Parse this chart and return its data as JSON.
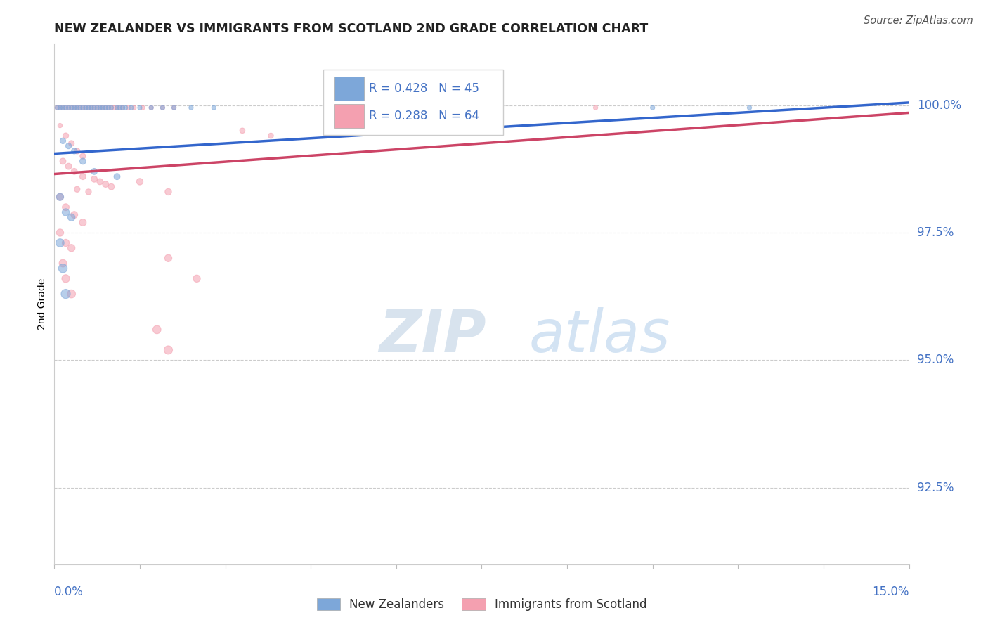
{
  "title": "NEW ZEALANDER VS IMMIGRANTS FROM SCOTLAND 2ND GRADE CORRELATION CHART",
  "source": "Source: ZipAtlas.com",
  "ylabel": "2nd Grade",
  "ylabel_ticks": [
    "92.5%",
    "95.0%",
    "97.5%",
    "100.0%"
  ],
  "ylabel_values": [
    92.5,
    95.0,
    97.5,
    100.0
  ],
  "xlim": [
    0.0,
    15.0
  ],
  "ylim": [
    91.0,
    101.2
  ],
  "legend_blue_r": "R = 0.428",
  "legend_blue_n": "N = 45",
  "legend_pink_r": "R = 0.288",
  "legend_pink_n": "N = 64",
  "legend_label_blue": "New Zealanders",
  "legend_label_pink": "Immigrants from Scotland",
  "blue_color": "#7da7d9",
  "pink_color": "#f4a0b0",
  "blue_line_color": "#3366cc",
  "pink_line_color": "#cc4466",
  "blue_line_x": [
    0.0,
    15.0
  ],
  "blue_line_y": [
    99.05,
    100.05
  ],
  "pink_line_x": [
    0.0,
    15.0
  ],
  "pink_line_y": [
    98.65,
    99.85
  ],
  "blue_dots": [
    [
      0.05,
      99.95
    ],
    [
      0.1,
      99.95
    ],
    [
      0.15,
      99.95
    ],
    [
      0.2,
      99.95
    ],
    [
      0.25,
      99.95
    ],
    [
      0.3,
      99.95
    ],
    [
      0.35,
      99.95
    ],
    [
      0.4,
      99.95
    ],
    [
      0.45,
      99.95
    ],
    [
      0.5,
      99.95
    ],
    [
      0.55,
      99.95
    ],
    [
      0.6,
      99.95
    ],
    [
      0.65,
      99.95
    ],
    [
      0.7,
      99.95
    ],
    [
      0.75,
      99.95
    ],
    [
      0.8,
      99.95
    ],
    [
      0.85,
      99.95
    ],
    [
      0.9,
      99.95
    ],
    [
      0.95,
      99.95
    ],
    [
      1.0,
      99.95
    ],
    [
      1.1,
      99.95
    ],
    [
      1.15,
      99.95
    ],
    [
      1.2,
      99.95
    ],
    [
      1.25,
      99.95
    ],
    [
      1.35,
      99.95
    ],
    [
      1.5,
      99.95
    ],
    [
      1.7,
      99.95
    ],
    [
      1.9,
      99.95
    ],
    [
      2.1,
      99.95
    ],
    [
      2.4,
      99.95
    ],
    [
      2.8,
      99.95
    ],
    [
      0.15,
      99.3
    ],
    [
      0.25,
      99.2
    ],
    [
      0.35,
      99.1
    ],
    [
      0.5,
      98.9
    ],
    [
      0.7,
      98.7
    ],
    [
      1.1,
      98.6
    ],
    [
      0.1,
      98.2
    ],
    [
      0.2,
      97.9
    ],
    [
      0.3,
      97.8
    ],
    [
      0.1,
      97.3
    ],
    [
      0.15,
      96.8
    ],
    [
      0.2,
      96.3
    ],
    [
      10.5,
      99.95
    ],
    [
      12.2,
      99.95
    ]
  ],
  "pink_dots": [
    [
      0.05,
      99.95
    ],
    [
      0.1,
      99.95
    ],
    [
      0.15,
      99.95
    ],
    [
      0.2,
      99.95
    ],
    [
      0.25,
      99.95
    ],
    [
      0.3,
      99.95
    ],
    [
      0.35,
      99.95
    ],
    [
      0.4,
      99.95
    ],
    [
      0.45,
      99.95
    ],
    [
      0.5,
      99.95
    ],
    [
      0.55,
      99.95
    ],
    [
      0.6,
      99.95
    ],
    [
      0.65,
      99.95
    ],
    [
      0.7,
      99.95
    ],
    [
      0.75,
      99.95
    ],
    [
      0.8,
      99.95
    ],
    [
      0.85,
      99.95
    ],
    [
      0.9,
      99.95
    ],
    [
      0.95,
      99.95
    ],
    [
      1.0,
      99.95
    ],
    [
      1.05,
      99.95
    ],
    [
      1.1,
      99.95
    ],
    [
      1.15,
      99.95
    ],
    [
      1.2,
      99.95
    ],
    [
      1.3,
      99.95
    ],
    [
      1.4,
      99.95
    ],
    [
      1.55,
      99.95
    ],
    [
      1.7,
      99.95
    ],
    [
      1.9,
      99.95
    ],
    [
      2.1,
      99.95
    ],
    [
      0.2,
      99.4
    ],
    [
      0.3,
      99.25
    ],
    [
      0.4,
      99.1
    ],
    [
      0.5,
      99.0
    ],
    [
      0.15,
      98.9
    ],
    [
      0.25,
      98.8
    ],
    [
      0.35,
      98.7
    ],
    [
      0.5,
      98.6
    ],
    [
      0.7,
      98.55
    ],
    [
      0.8,
      98.5
    ],
    [
      0.9,
      98.45
    ],
    [
      1.0,
      98.4
    ],
    [
      0.1,
      98.2
    ],
    [
      0.2,
      98.0
    ],
    [
      0.35,
      97.85
    ],
    [
      0.5,
      97.7
    ],
    [
      0.1,
      97.5
    ],
    [
      0.2,
      97.3
    ],
    [
      0.3,
      97.2
    ],
    [
      0.15,
      96.9
    ],
    [
      0.2,
      96.6
    ],
    [
      0.3,
      96.3
    ],
    [
      0.1,
      99.6
    ],
    [
      9.5,
      99.95
    ],
    [
      1.5,
      98.5
    ],
    [
      2.0,
      98.3
    ],
    [
      2.0,
      97.0
    ],
    [
      2.5,
      96.6
    ],
    [
      1.8,
      95.6
    ],
    [
      2.0,
      95.2
    ],
    [
      0.4,
      98.35
    ],
    [
      0.6,
      98.3
    ],
    [
      3.3,
      99.5
    ],
    [
      3.8,
      99.4
    ]
  ],
  "blue_dot_sizes": [
    20,
    20,
    20,
    20,
    20,
    20,
    20,
    20,
    20,
    20,
    20,
    20,
    20,
    20,
    20,
    20,
    20,
    20,
    20,
    20,
    20,
    20,
    20,
    20,
    20,
    20,
    20,
    20,
    20,
    20,
    20,
    35,
    35,
    35,
    40,
    40,
    40,
    55,
    55,
    55,
    70,
    80,
    90,
    20,
    20
  ],
  "pink_dot_sizes": [
    20,
    20,
    20,
    20,
    20,
    20,
    20,
    20,
    20,
    20,
    20,
    20,
    20,
    20,
    20,
    20,
    20,
    20,
    20,
    20,
    20,
    20,
    20,
    20,
    20,
    20,
    20,
    20,
    20,
    20,
    35,
    35,
    35,
    35,
    40,
    40,
    40,
    40,
    40,
    40,
    40,
    40,
    50,
    50,
    50,
    50,
    55,
    55,
    55,
    60,
    65,
    70,
    20,
    20,
    45,
    45,
    55,
    55,
    70,
    75,
    35,
    35,
    30,
    30
  ]
}
